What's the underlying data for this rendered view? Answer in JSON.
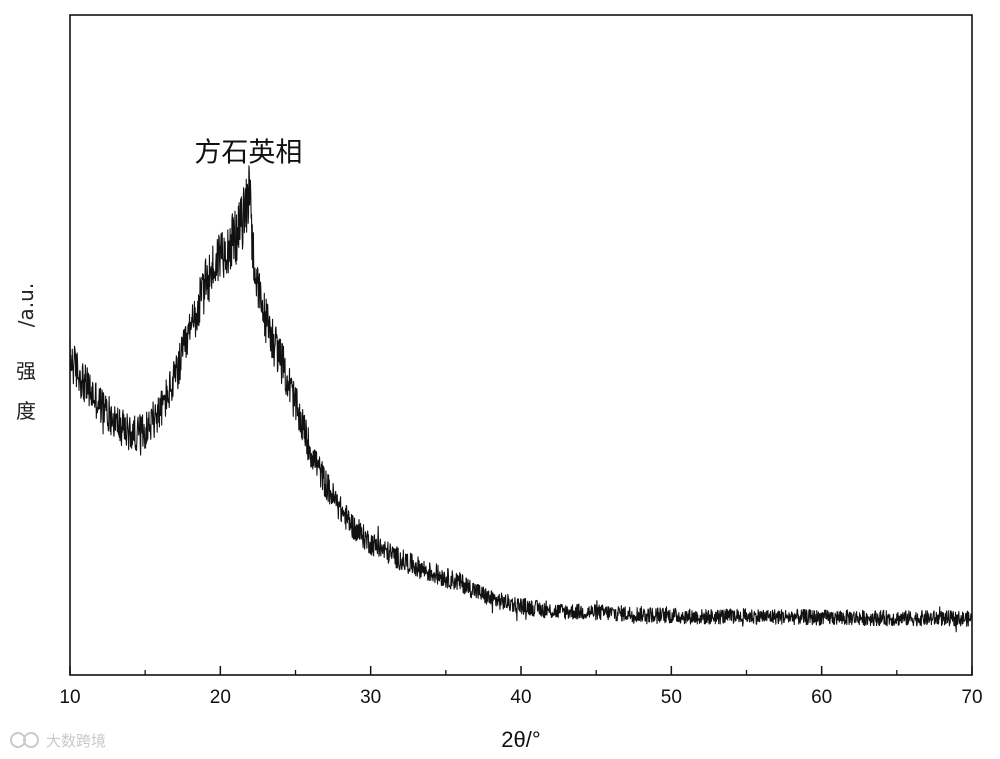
{
  "chart_data": {
    "type": "line",
    "title": "",
    "xlabel": "2θ/°",
    "ylabel_prefix": "/a.u.",
    "ylabel_chars": [
      "强",
      "度"
    ],
    "xlim": [
      10,
      70
    ],
    "ylim": [
      0,
      100
    ],
    "xticks": [
      10,
      20,
      30,
      40,
      50,
      60,
      70
    ],
    "minor_xticks": [
      15,
      25,
      35,
      45,
      55,
      65
    ],
    "y_ticks_shown": false,
    "grid": false,
    "legend": "none",
    "color": "#111111",
    "annotations": [
      {
        "text": "方石英相",
        "x": 22,
        "y": 79
      }
    ],
    "series": [
      {
        "x": [
          10,
          11,
          12,
          13,
          14,
          15,
          16,
          17,
          18,
          19,
          20,
          21,
          21.5,
          21.8,
          22,
          22.1,
          22.5,
          23,
          24,
          25,
          26,
          27,
          28,
          29,
          30,
          32,
          34,
          36,
          38,
          40,
          42,
          45,
          48,
          50,
          52,
          55,
          58,
          60,
          62,
          65,
          68,
          70
        ],
        "values": [
          48,
          44,
          41,
          38.5,
          36.5,
          37,
          40,
          45,
          52,
          59,
          64,
          66,
          69,
          72,
          75,
          66,
          58,
          54,
          48,
          41,
          34,
          29,
          25,
          22,
          20,
          17.5,
          15.5,
          14,
          11.5,
          10.5,
          9.7,
          9.5,
          9.2,
          9.0,
          8.8,
          8.9,
          8.8,
          8.7,
          8.7,
          8.6,
          8.6,
          8.5
        ]
      }
    ]
  },
  "watermark": {
    "text": "大数跨境",
    "icon": "logo-icon"
  }
}
